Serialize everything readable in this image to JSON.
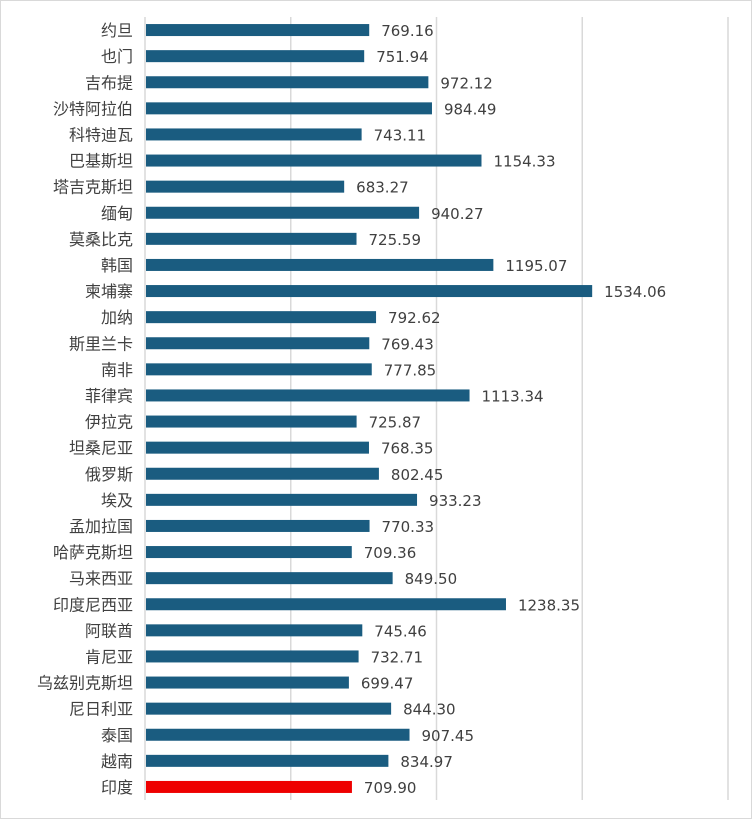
{
  "chart_data": {
    "type": "bar",
    "orientation": "horizontal",
    "title": "",
    "xlabel": "",
    "ylabel": "",
    "xlim": [
      0,
      2000
    ],
    "grid_step": 500,
    "grid": true,
    "categories": [
      "约旦",
      "也门",
      "吉布提",
      "沙特阿拉伯",
      "科特迪瓦",
      "巴基斯坦",
      "塔吉克斯坦",
      "缅甸",
      "莫桑比克",
      "韩国",
      "柬埔寨",
      "加纳",
      "斯里兰卡",
      "南非",
      "菲律宾",
      "伊拉克",
      "坦桑尼亚",
      "俄罗斯",
      "埃及",
      "孟加拉国",
      "哈萨克斯坦",
      "马来西亚",
      "印度尼西亚",
      "阿联酋",
      "肯尼亚",
      "乌兹别克斯坦",
      "尼日利亚",
      "泰国",
      "越南",
      "印度"
    ],
    "values": [
      769.16,
      751.94,
      972.12,
      984.49,
      743.11,
      1154.33,
      683.27,
      940.27,
      725.59,
      1195.07,
      1534.06,
      792.62,
      769.43,
      777.85,
      1113.34,
      725.87,
      768.35,
      802.45,
      933.23,
      770.33,
      709.36,
      849.5,
      1238.35,
      745.46,
      732.71,
      699.47,
      844.3,
      907.45,
      834.97,
      709.9
    ],
    "labels": [
      "769.16",
      "751.94",
      "972.12",
      "984.49",
      "743.11",
      "1154.33",
      "683.27",
      "940.27",
      "725.59",
      "1195.07",
      "1534.06",
      "792.62",
      "769.43",
      "777.85",
      "1113.34",
      "725.87",
      "768.35",
      "802.45",
      "933.23",
      "770.33",
      "709.36",
      "849.50",
      "1238.35",
      "745.46",
      "732.71",
      "699.47",
      "844.30",
      "907.45",
      "834.97",
      "709.90"
    ],
    "highlight_index": 29,
    "colors": {
      "bar": "#1a5c80",
      "highlight": "#ee0000",
      "grid": "#d9d9d9",
      "text": "#404040"
    }
  }
}
